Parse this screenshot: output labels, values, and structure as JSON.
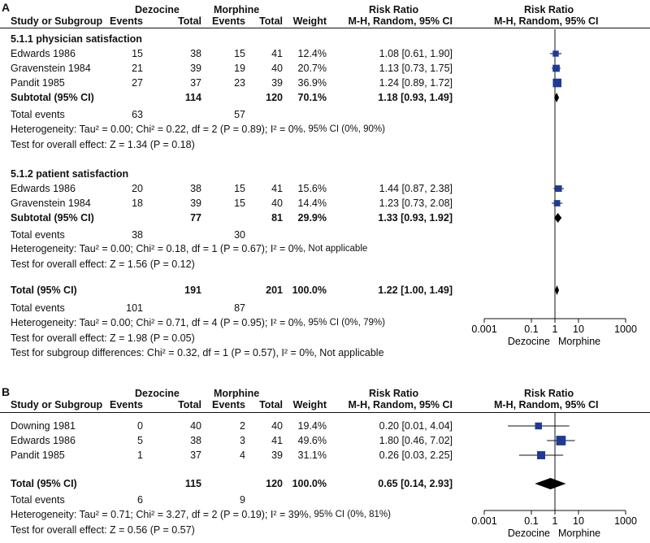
{
  "chart_data": [
    {
      "type": "forest",
      "panel": "A",
      "headers": {
        "group1": "Dezocine",
        "group2": "Morphine",
        "rr": "Risk Ratio",
        "rr_plot": "Risk Ratio",
        "study": "Study or Subgroup",
        "events1": "Events",
        "total1": "Total",
        "events2": "Events",
        "total2": "Total",
        "weight": "Weight",
        "method": "M-H, Random, 95% CI",
        "method_plot": "M-H, Random, 95% CI"
      },
      "subgroups": [
        {
          "title": "5.1.1 physician satisfaction",
          "studies": [
            {
              "name": "Edwards 1986",
              "e1": "15",
              "t1": "38",
              "e2": "15",
              "t2": "41",
              "weight": "12.4%",
              "ci_text": "1.08 [0.61, 1.90]",
              "rr": 1.08,
              "lo": 0.61,
              "hi": 1.9,
              "w": 12.4
            },
            {
              "name": "Gravenstein 1984",
              "e1": "21",
              "t1": "39",
              "e2": "19",
              "t2": "40",
              "weight": "20.7%",
              "ci_text": "1.13 [0.73, 1.75]",
              "rr": 1.13,
              "lo": 0.73,
              "hi": 1.75,
              "w": 20.7
            },
            {
              "name": "Pandit 1985",
              "e1": "27",
              "t1": "37",
              "e2": "23",
              "t2": "39",
              "weight": "36.9%",
              "ci_text": "1.24 [0.89, 1.72]",
              "rr": 1.24,
              "lo": 0.89,
              "hi": 1.72,
              "w": 36.9
            }
          ],
          "subtotal": {
            "label": "Subtotal (95% CI)",
            "t1": "114",
            "t2": "120",
            "weight": "70.1%",
            "ci_text": "1.18 [0.93, 1.49]",
            "rr": 1.18,
            "lo": 0.93,
            "hi": 1.49
          },
          "total_events": {
            "label": "Total events",
            "e1": "63",
            "e2": "57"
          },
          "heterogeneity": "Heterogeneity: Tau² = 0.00; Chi² = 0.22, df = 2 (P = 0.89); I² = 0%",
          "heterogeneity_ci": ", 95% CI (0%, 90%)",
          "overall": "Test for overall effect: Z = 1.34 (P = 0.18)"
        },
        {
          "title": "5.1.2 patient satisfaction",
          "studies": [
            {
              "name": "Edwards 1986",
              "e1": "20",
              "t1": "38",
              "e2": "15",
              "t2": "41",
              "weight": "15.6%",
              "ci_text": "1.44 [0.87, 2.38]",
              "rr": 1.44,
              "lo": 0.87,
              "hi": 2.38,
              "w": 15.6
            },
            {
              "name": "Gravenstein 1984",
              "e1": "18",
              "t1": "39",
              "e2": "15",
              "t2": "40",
              "weight": "14.4%",
              "ci_text": "1.23 [0.73, 2.08]",
              "rr": 1.23,
              "lo": 0.73,
              "hi": 2.08,
              "w": 14.4
            }
          ],
          "subtotal": {
            "label": "Subtotal (95% CI)",
            "t1": "77",
            "t2": "81",
            "weight": "29.9%",
            "ci_text": "1.33 [0.93, 1.92]",
            "rr": 1.33,
            "lo": 0.93,
            "hi": 1.92
          },
          "total_events": {
            "label": "Total events",
            "e1": "38",
            "e2": "30"
          },
          "heterogeneity": "Heterogeneity: Tau² = 0.00; Chi² = 0.18, df = 1 (P = 0.67); I² = 0%",
          "heterogeneity_ci": ", Not applicable",
          "overall": "Test for overall effect: Z = 1.56 (P = 0.12)"
        }
      ],
      "total": {
        "label": "Total (95% CI)",
        "t1": "191",
        "t2": "201",
        "weight": "100.0%",
        "ci_text": "1.22 [1.00, 1.49]",
        "rr": 1.22,
        "lo": 1.0,
        "hi": 1.49
      },
      "total_events": {
        "label": "Total events",
        "e1": "101",
        "e2": "87"
      },
      "heterogeneity": "Heterogeneity: Tau² = 0.00; Chi² = 0.71, df = 4 (P = 0.95); I² = 0%",
      "heterogeneity_ci": ", 95% CI (0%, 79%)",
      "overall": "Test for overall effect: Z = 1.98 (P = 0.05)",
      "subgroup_diff": "Test for subgroup differences: Chi² = 0.32, df = 1 (P = 0.57), I² = 0%, Not applicable",
      "axis": {
        "scale": "log",
        "ticks": [
          0.001,
          0.1,
          1,
          10,
          1000
        ],
        "tick_labels": [
          "0.001",
          "0.1",
          "1",
          "10",
          "1000"
        ],
        "left_label": "Dezocine",
        "right_label": "Morphine",
        "xlim": [
          0.001,
          1000
        ]
      }
    },
    {
      "type": "forest",
      "panel": "B",
      "headers": {
        "group1": "Dezocine",
        "group2": "Morphine",
        "rr": "Risk Ratio",
        "rr_plot": "Risk Ratio",
        "study": "Study or Subgroup",
        "events1": "Events",
        "total1": "Total",
        "events2": "Events",
        "total2": "Total",
        "weight": "Weight",
        "method": "M-H, Random, 95% CI",
        "method_plot": "M-H, Random, 95% CI"
      },
      "studies": [
        {
          "name": "Downing 1981",
          "e1": "0",
          "t1": "40",
          "e2": "2",
          "t2": "40",
          "weight": "19.4%",
          "ci_text": "0.20 [0.01, 4.04]",
          "rr": 0.2,
          "lo": 0.01,
          "hi": 4.04,
          "w": 19.4
        },
        {
          "name": "Edwards 1986",
          "e1": "5",
          "t1": "38",
          "e2": "3",
          "t2": "41",
          "weight": "49.6%",
          "ci_text": "1.80 [0.46, 7.02]",
          "rr": 1.8,
          "lo": 0.46,
          "hi": 7.02,
          "w": 49.6
        },
        {
          "name": "Pandit 1985",
          "e1": "1",
          "t1": "37",
          "e2": "4",
          "t2": "39",
          "weight": "31.1%",
          "ci_text": "0.26 [0.03, 2.25]",
          "rr": 0.26,
          "lo": 0.03,
          "hi": 2.25,
          "w": 31.1
        }
      ],
      "total": {
        "label": "Total (95% CI)",
        "t1": "115",
        "t2": "120",
        "weight": "100.0%",
        "ci_text": "0.65 [0.14, 2.93]",
        "rr": 0.65,
        "lo": 0.14,
        "hi": 2.93
      },
      "total_events": {
        "label": "Total events",
        "e1": "6",
        "e2": "9"
      },
      "heterogeneity": "Heterogeneity: Tau² = 0.71; Chi² = 3.27, df = 2 (P = 0.19); I² = 39%",
      "heterogeneity_ci": ", 95% CI (0%, 81%)",
      "overall": "Test for overall effect: Z = 0.56 (P = 0.57)",
      "axis": {
        "scale": "log",
        "ticks": [
          0.001,
          0.1,
          1,
          10,
          1000
        ],
        "tick_labels": [
          "0.001",
          "0.1",
          "1",
          "10",
          "1000"
        ],
        "left_label": "Dezocine",
        "right_label": "Morphine",
        "xlim": [
          0.001,
          1000
        ]
      }
    }
  ],
  "colors": {
    "square": "#1f3a93",
    "diamond": "#000000",
    "line": "#111111"
  }
}
